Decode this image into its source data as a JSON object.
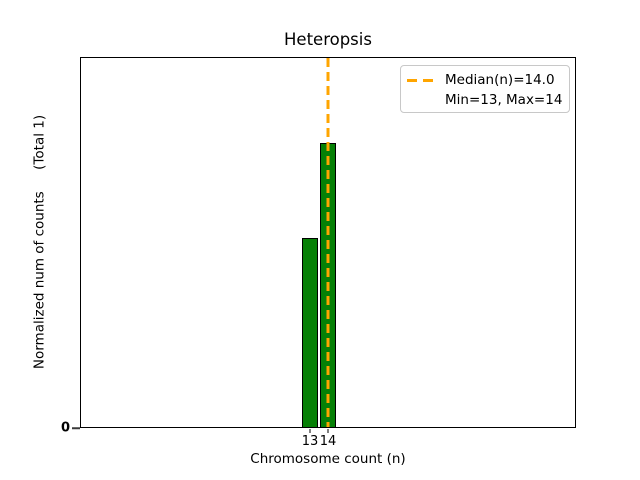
{
  "chart_data": {
    "type": "bar",
    "title": "Heteropsis",
    "xlabel": "Chromosome count (n)",
    "ylabel": "Normalized num of counts     (Total 1)",
    "categories": [
      13,
      14
    ],
    "values": [
      0.4,
      0.6
    ],
    "bar_width": 0.85,
    "xlim": [
      0.23,
      27.77
    ],
    "ylim": [
      0,
      0.78
    ],
    "xticks": [
      "13",
      "14"
    ],
    "yticks": [
      "0"
    ],
    "ytick_values": [
      0
    ],
    "median": 14.0,
    "min": 13,
    "max": 14,
    "total": 1,
    "grid": false,
    "legend_position": "upper right",
    "legend_entries": [
      "Median(n)=14.0",
      "Min=13, Max=14"
    ],
    "colors": {
      "bar_fill": "#068006",
      "bar_edge": "#000000",
      "median_line": "#FFA500",
      "legend_border": "#c8c8c8",
      "text": "#000000"
    }
  }
}
